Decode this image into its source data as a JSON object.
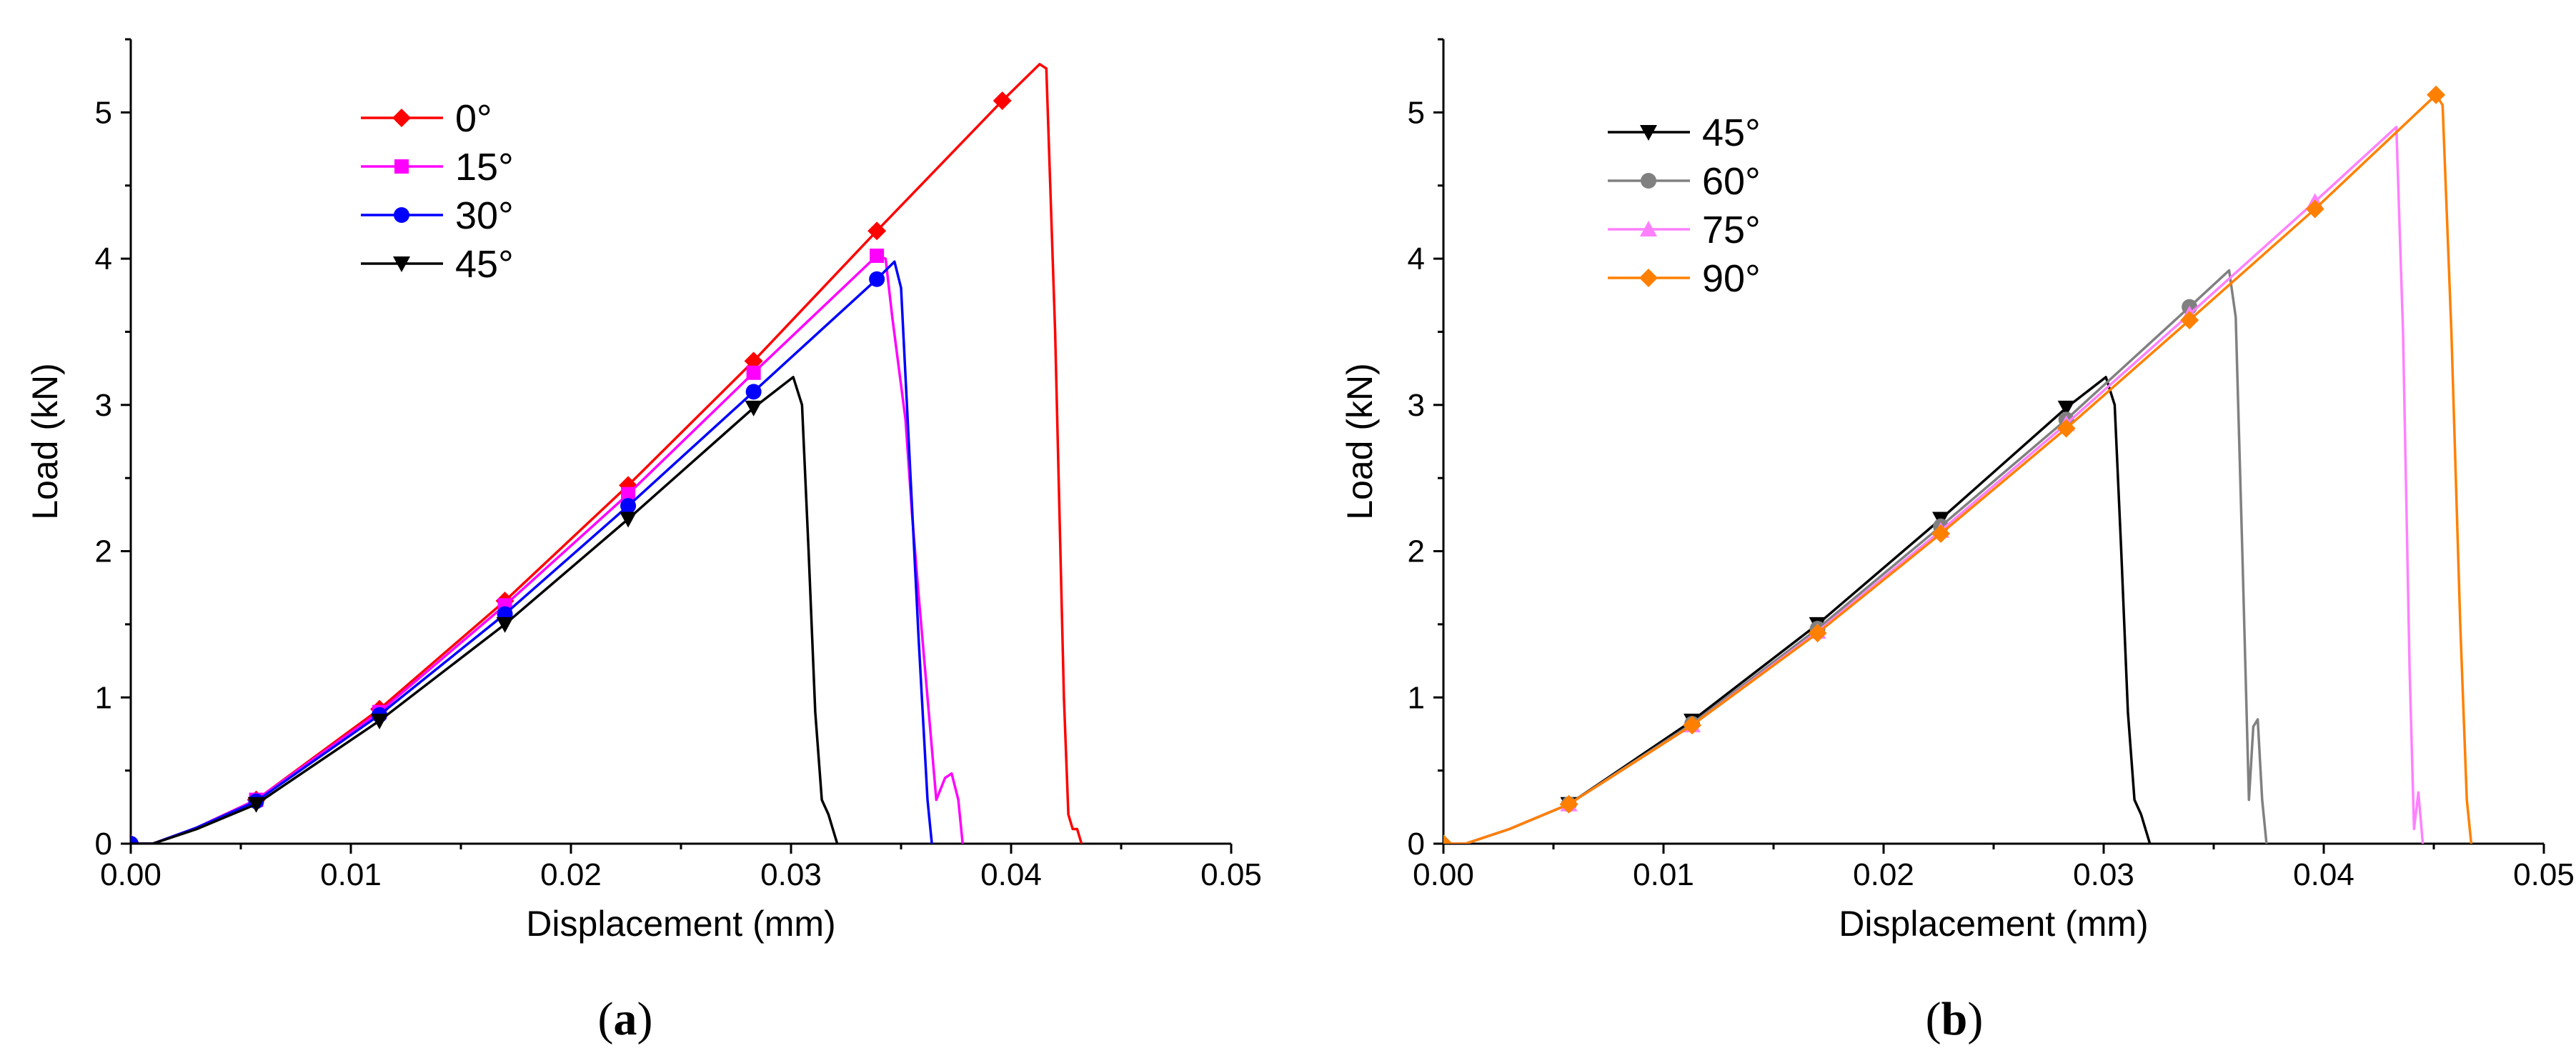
{
  "chart_data": [
    {
      "type": "line",
      "panel_label": "a",
      "xlabel": "Displacement (mm)",
      "ylabel": "Load (kN)",
      "xlim": [
        0,
        0.05
      ],
      "ylim": [
        0,
        5.5
      ],
      "xticks": [
        0,
        0.01,
        0.02,
        0.03,
        0.04,
        0.05
      ],
      "xtick_labels": [
        "0.00",
        "0.01",
        "0.02",
        "0.03",
        "0.04",
        "0.05"
      ],
      "yticks": [
        0,
        1,
        2,
        3,
        4,
        5
      ],
      "ytick_labels": [
        "0",
        "1",
        "2",
        "3",
        "4",
        "5"
      ],
      "legend_position": "top-left",
      "series": [
        {
          "name": "0°",
          "color": "#ff0000",
          "marker": "diamond",
          "x": [
            0,
            0.001,
            0.003,
            0.0057,
            0.0113,
            0.017,
            0.0226,
            0.0283,
            0.0339,
            0.0396,
            0.0413,
            0.0416,
            0.042,
            0.0424,
            0.0426,
            0.0428,
            0.043,
            0.0432
          ],
          "y": [
            0,
            0,
            0.11,
            0.3,
            0.92,
            1.66,
            2.45,
            3.3,
            4.19,
            5.08,
            5.33,
            5.3,
            3.5,
            1.0,
            0.2,
            0.1,
            0.1,
            0
          ],
          "markers_x": [
            0,
            0.0057,
            0.0113,
            0.017,
            0.0226,
            0.0283,
            0.0339,
            0.0396
          ],
          "markers_y": [
            0,
            0.3,
            0.92,
            1.66,
            2.45,
            3.3,
            4.19,
            5.08
          ]
        },
        {
          "name": "15°",
          "color": "#ff00ff",
          "marker": "square",
          "x": [
            0,
            0.001,
            0.003,
            0.0057,
            0.0113,
            0.017,
            0.0226,
            0.0283,
            0.0339,
            0.0343,
            0.0346,
            0.0352,
            0.0355,
            0.0358,
            0.0362,
            0.0366,
            0.037,
            0.0373,
            0.0376,
            0.0378
          ],
          "y": [
            0,
            0,
            0.11,
            0.3,
            0.9,
            1.63,
            2.39,
            3.22,
            4.02,
            4.0,
            3.6,
            2.9,
            2.25,
            1.7,
            1.0,
            0.3,
            0.45,
            0.48,
            0.3,
            0
          ],
          "markers_x": [
            0.0057,
            0.0113,
            0.017,
            0.0226,
            0.0283,
            0.0339
          ],
          "markers_y": [
            0.3,
            0.9,
            1.63,
            2.39,
            3.22,
            4.02
          ]
        },
        {
          "name": "30°",
          "color": "#0000ff",
          "marker": "circle",
          "x": [
            0,
            0.001,
            0.003,
            0.0057,
            0.0113,
            0.017,
            0.0226,
            0.0283,
            0.0339,
            0.0347,
            0.035,
            0.0354,
            0.0358,
            0.0362,
            0.0364
          ],
          "y": [
            0,
            0,
            0.11,
            0.29,
            0.88,
            1.57,
            2.31,
            3.09,
            3.86,
            3.98,
            3.8,
            2.6,
            1.4,
            0.3,
            0
          ],
          "markers_x": [
            0,
            0.0057,
            0.0113,
            0.017,
            0.0226,
            0.0283,
            0.0339
          ],
          "markers_y": [
            0,
            0.29,
            0.88,
            1.57,
            2.31,
            3.09,
            3.86
          ]
        },
        {
          "name": "45°",
          "color": "#000000",
          "marker": "triangle-down",
          "x": [
            0,
            0.001,
            0.003,
            0.0057,
            0.0113,
            0.017,
            0.0226,
            0.0283,
            0.0301,
            0.0305,
            0.0308,
            0.0311,
            0.0314,
            0.0317,
            0.0319,
            0.0321
          ],
          "y": [
            0,
            0,
            0.1,
            0.27,
            0.84,
            1.5,
            2.22,
            2.98,
            3.19,
            3.0,
            2.0,
            0.9,
            0.3,
            0.2,
            0.1,
            0
          ],
          "markers_x": [
            0.0057,
            0.0113,
            0.017,
            0.0226,
            0.0283
          ],
          "markers_y": [
            0.27,
            0.84,
            1.5,
            2.22,
            2.98
          ]
        }
      ]
    },
    {
      "type": "line",
      "panel_label": "b",
      "xlabel": "Displacement (mm)",
      "ylabel": "Load (kN)",
      "xlim": [
        0,
        0.05
      ],
      "ylim": [
        0,
        5.5
      ],
      "xticks": [
        0,
        0.01,
        0.02,
        0.03,
        0.04,
        0.05
      ],
      "xtick_labels": [
        "0.00",
        "0.01",
        "0.02",
        "0.03",
        "0.04",
        "0.05"
      ],
      "yticks": [
        0,
        1,
        2,
        3,
        4,
        5
      ],
      "ytick_labels": [
        "0",
        "1",
        "2",
        "3",
        "4",
        "5"
      ],
      "legend_position": "top-left",
      "series": [
        {
          "name": "45°",
          "color": "#000000",
          "marker": "triangle-down",
          "x": [
            0,
            0.001,
            0.003,
            0.0057,
            0.0113,
            0.017,
            0.0226,
            0.0283,
            0.0301,
            0.0305,
            0.0308,
            0.0311,
            0.0314,
            0.0317,
            0.0319,
            0.0321
          ],
          "y": [
            0,
            0,
            0.1,
            0.27,
            0.84,
            1.5,
            2.22,
            2.98,
            3.19,
            3.0,
            2.0,
            0.9,
            0.3,
            0.2,
            0.1,
            0
          ],
          "markers_x": [
            0.0057,
            0.0113,
            0.017,
            0.0226,
            0.0283
          ],
          "markers_y": [
            0.27,
            0.84,
            1.5,
            2.22,
            2.98
          ]
        },
        {
          "name": "60°",
          "color": "#808080",
          "marker": "circle",
          "x": [
            0,
            0.001,
            0.003,
            0.0057,
            0.0113,
            0.017,
            0.0226,
            0.0283,
            0.0339,
            0.0357,
            0.036,
            0.0363,
            0.0366,
            0.0368,
            0.037,
            0.0372,
            0.0374
          ],
          "y": [
            0,
            0,
            0.1,
            0.27,
            0.82,
            1.47,
            2.17,
            2.9,
            3.67,
            3.92,
            3.6,
            2.0,
            0.3,
            0.8,
            0.85,
            0.3,
            0
          ],
          "markers_x": [
            0.0057,
            0.0113,
            0.017,
            0.0226,
            0.0283,
            0.0339
          ],
          "markers_y": [
            0.27,
            0.82,
            1.47,
            2.17,
            2.9,
            3.67
          ]
        },
        {
          "name": "75°",
          "color": "#ff80ff",
          "marker": "triangle-up",
          "x": [
            0,
            0.001,
            0.003,
            0.0057,
            0.0113,
            0.017,
            0.0226,
            0.0283,
            0.0339,
            0.0396,
            0.0433,
            0.0436,
            0.0439,
            0.0441,
            0.0443,
            0.0445
          ],
          "y": [
            0,
            0,
            0.1,
            0.27,
            0.81,
            1.45,
            2.14,
            2.87,
            3.62,
            4.39,
            4.9,
            3.5,
            1.2,
            0.1,
            0.35,
            0
          ],
          "markers_x": [
            0.0057,
            0.0113,
            0.017,
            0.0226,
            0.0283,
            0.0339,
            0.0396
          ],
          "markers_y": [
            0.27,
            0.81,
            1.45,
            2.14,
            2.87,
            3.62,
            4.39
          ]
        },
        {
          "name": "90°",
          "color": "#ff8000",
          "marker": "diamond",
          "x": [
            0,
            0.001,
            0.003,
            0.0057,
            0.0113,
            0.017,
            0.0226,
            0.0283,
            0.0339,
            0.0396,
            0.0451,
            0.0454,
            0.0458,
            0.0462,
            0.0465,
            0.0467
          ],
          "y": [
            0,
            0,
            0.1,
            0.27,
            0.81,
            1.44,
            2.12,
            2.84,
            3.58,
            4.34,
            5.12,
            5.05,
            3.5,
            1.5,
            0.3,
            0
          ],
          "markers_x": [
            0,
            0.0057,
            0.0113,
            0.017,
            0.0226,
            0.0283,
            0.0339,
            0.0396,
            0.0451
          ],
          "markers_y": [
            0,
            0.27,
            0.81,
            1.44,
            2.12,
            2.84,
            3.58,
            4.34,
            5.12
          ]
        }
      ]
    }
  ]
}
